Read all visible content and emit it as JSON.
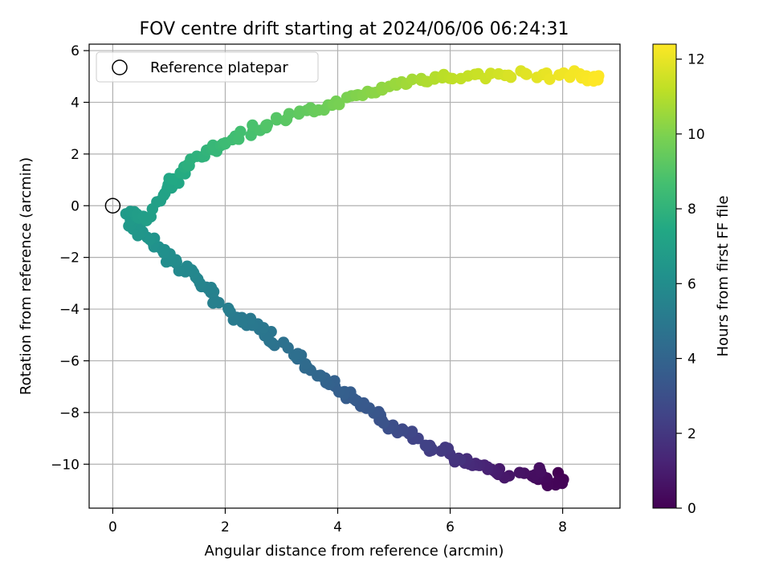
{
  "chart_data": {
    "type": "scatter",
    "title": "FOV centre drift starting at 2024/06/06 06:24:31",
    "xlabel": "Angular distance from reference (arcmin)",
    "ylabel": "Rotation from reference (arcmin)",
    "xlim": [
      -0.42,
      9.02
    ],
    "ylim": [
      -11.7,
      6.25
    ],
    "xticks": [
      0,
      2,
      4,
      6,
      8
    ],
    "yticks": [
      6,
      4,
      2,
      0,
      -2,
      -4,
      -6,
      -8,
      -10
    ],
    "grid": true,
    "legend": {
      "placement": "top-left",
      "entries": [
        {
          "label": "Reference platepar",
          "marker": "open-circle"
        }
      ]
    },
    "reference_point": {
      "x": 0,
      "y": 0
    },
    "colorbar": {
      "label": "Hours from first FF file",
      "range": [
        0,
        12.4
      ],
      "ticks": [
        0,
        2,
        4,
        6,
        8,
        10,
        12
      ],
      "colormap": "viridis"
    },
    "series": [
      {
        "points": [
          [
            8.0,
            -10.45,
            0.0
          ],
          [
            7.95,
            -10.75,
            0.1
          ],
          [
            7.7,
            -10.7,
            0.2
          ],
          [
            7.6,
            -10.55,
            0.3
          ],
          [
            7.5,
            -10.45,
            0.4
          ],
          [
            7.55,
            -10.25,
            0.5
          ],
          [
            6.9,
            -10.4,
            0.8
          ],
          [
            6.8,
            -10.2,
            1.0
          ],
          [
            6.6,
            -10.1,
            1.2
          ],
          [
            6.4,
            -10.0,
            1.4
          ],
          [
            6.25,
            -9.9,
            1.6
          ],
          [
            6.1,
            -9.75,
            1.8
          ],
          [
            5.9,
            -9.5,
            2.0
          ],
          [
            5.7,
            -9.35,
            2.2
          ],
          [
            5.5,
            -9.2,
            2.4
          ],
          [
            5.3,
            -8.85,
            2.6
          ],
          [
            5.1,
            -8.7,
            2.8
          ],
          [
            4.9,
            -8.5,
            3.0
          ],
          [
            4.7,
            -8.2,
            3.2
          ],
          [
            4.5,
            -7.8,
            3.4
          ],
          [
            4.3,
            -7.5,
            3.5
          ],
          [
            4.1,
            -7.3,
            3.7
          ],
          [
            3.9,
            -6.9,
            3.8
          ],
          [
            3.7,
            -6.6,
            4.0
          ],
          [
            3.5,
            -6.3,
            4.2
          ],
          [
            3.3,
            -5.9,
            4.4
          ],
          [
            3.0,
            -5.4,
            4.6
          ],
          [
            2.8,
            -5.0,
            4.8
          ],
          [
            2.6,
            -4.7,
            4.9
          ],
          [
            2.4,
            -4.5,
            5.0
          ],
          [
            2.2,
            -4.3,
            5.1
          ],
          [
            1.9,
            -3.7,
            5.3
          ],
          [
            1.75,
            -3.4,
            5.4
          ],
          [
            1.6,
            -3.1,
            5.5
          ],
          [
            1.4,
            -2.7,
            5.7
          ],
          [
            1.2,
            -2.4,
            5.8
          ],
          [
            1.0,
            -2.1,
            6.0
          ],
          [
            0.9,
            -1.8,
            6.1
          ],
          [
            0.75,
            -1.5,
            6.2
          ],
          [
            0.6,
            -1.2,
            6.4
          ],
          [
            0.45,
            -0.9,
            6.5
          ],
          [
            0.3,
            -0.6,
            6.6
          ],
          [
            0.25,
            -0.3,
            6.7
          ],
          [
            0.45,
            -0.3,
            6.8
          ],
          [
            0.55,
            -0.5,
            6.9
          ],
          [
            0.8,
            0.3,
            7.0
          ],
          [
            0.95,
            0.7,
            7.2
          ],
          [
            1.1,
            1.0,
            7.4
          ],
          [
            1.25,
            1.4,
            7.6
          ],
          [
            1.4,
            1.7,
            7.8
          ],
          [
            1.6,
            1.95,
            8.0
          ],
          [
            1.8,
            2.2,
            8.2
          ],
          [
            2.0,
            2.5,
            8.4
          ],
          [
            2.3,
            2.7,
            8.6
          ],
          [
            2.5,
            3.0,
            8.8
          ],
          [
            2.8,
            3.2,
            9.0
          ],
          [
            3.1,
            3.4,
            9.2
          ],
          [
            3.4,
            3.6,
            9.4
          ],
          [
            3.7,
            3.8,
            9.6
          ],
          [
            4.0,
            4.0,
            9.8
          ],
          [
            4.3,
            4.2,
            10.0
          ],
          [
            4.6,
            4.4,
            10.2
          ],
          [
            4.9,
            4.6,
            10.4
          ],
          [
            5.2,
            4.8,
            10.6
          ],
          [
            5.5,
            4.9,
            10.8
          ],
          [
            5.8,
            4.95,
            11.0
          ],
          [
            6.1,
            5.0,
            11.2
          ],
          [
            6.5,
            5.0,
            11.4
          ],
          [
            6.9,
            5.1,
            11.6
          ],
          [
            7.3,
            5.1,
            11.8
          ],
          [
            7.7,
            5.0,
            12.0
          ],
          [
            8.1,
            5.1,
            12.2
          ],
          [
            8.4,
            5.0,
            12.3
          ],
          [
            8.6,
            4.9,
            12.4
          ]
        ]
      }
    ]
  }
}
